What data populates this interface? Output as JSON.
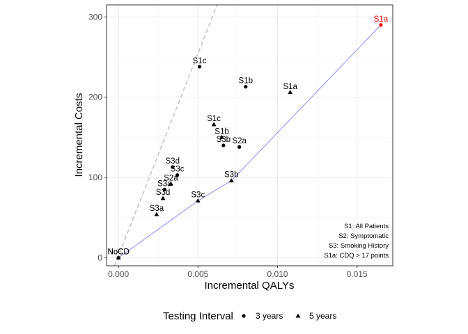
{
  "chart_data": {
    "type": "scatter",
    "xlabel": "Incremental QALYs",
    "ylabel": "Incremental Costs",
    "xlim": [
      -0.00075,
      0.01725
    ],
    "ylim": [
      -10,
      315
    ],
    "x_ticks": [
      0.0,
      0.005,
      0.01,
      0.015
    ],
    "x_tick_labels": [
      "0.000",
      "0.005",
      "0.010",
      "0.015"
    ],
    "y_ticks": [
      0,
      100,
      200,
      300
    ],
    "y_tick_labels": [
      "0",
      "100",
      "200",
      "300"
    ],
    "grid": true,
    "legend": {
      "title": "Testing Interval",
      "placement": "bottom",
      "entries": [
        {
          "label": "3 years",
          "shape": "circle"
        },
        {
          "label": "5 years",
          "shape": "triangle"
        }
      ]
    },
    "series": [
      {
        "name": "3 years",
        "shape": "circle",
        "points": [
          {
            "label": "NoCD",
            "x": 0.0,
            "y": 0
          },
          {
            "label": "S1c",
            "x": 0.0051,
            "y": 238
          },
          {
            "label": "S1b",
            "x": 0.008,
            "y": 213
          },
          {
            "label": "S2a",
            "x": 0.0076,
            "y": 138
          },
          {
            "label": "S3b",
            "x": 0.0066,
            "y": 140
          },
          {
            "label": "S3d",
            "x": 0.0034,
            "y": 113
          },
          {
            "label": "S3c",
            "x": 0.0037,
            "y": 103
          },
          {
            "label": "S3a",
            "x": 0.0029,
            "y": 85
          },
          {
            "label": "S1a",
            "x": 0.0165,
            "y": 290,
            "color": "#ff0000"
          }
        ]
      },
      {
        "name": "5 years",
        "shape": "triangle",
        "points": [
          {
            "label": "NoCD",
            "x": 0.0,
            "y": 0
          },
          {
            "label": "S1a",
            "x": 0.0108,
            "y": 206
          },
          {
            "label": "S1c",
            "x": 0.006,
            "y": 166
          },
          {
            "label": "S1b",
            "x": 0.0065,
            "y": 150
          },
          {
            "label": "S3b",
            "x": 0.0071,
            "y": 96
          },
          {
            "label": "S2a",
            "x": 0.0033,
            "y": 92
          },
          {
            "label": "S3d",
            "x": 0.0028,
            "y": 74
          },
          {
            "label": "S3c",
            "x": 0.005,
            "y": 71
          },
          {
            "label": "S3a",
            "x": 0.0024,
            "y": 54
          }
        ]
      }
    ],
    "frontier_line": {
      "color": "#8080ff",
      "points": [
        [
          0.0,
          0
        ],
        [
          0.005,
          71
        ],
        [
          0.0071,
          96
        ],
        [
          0.0165,
          290
        ]
      ]
    },
    "threshold_line": {
      "style": "dashed",
      "color": "#bdbdbd",
      "points": [
        [
          -0.00025,
          -10
        ],
        [
          0.0062,
          315
        ]
      ]
    },
    "annotations": [
      "S1: All Patients",
      "S2: Symptomatic",
      "S3: Smoking History",
      "S1a: CDQ > 17 points"
    ]
  }
}
